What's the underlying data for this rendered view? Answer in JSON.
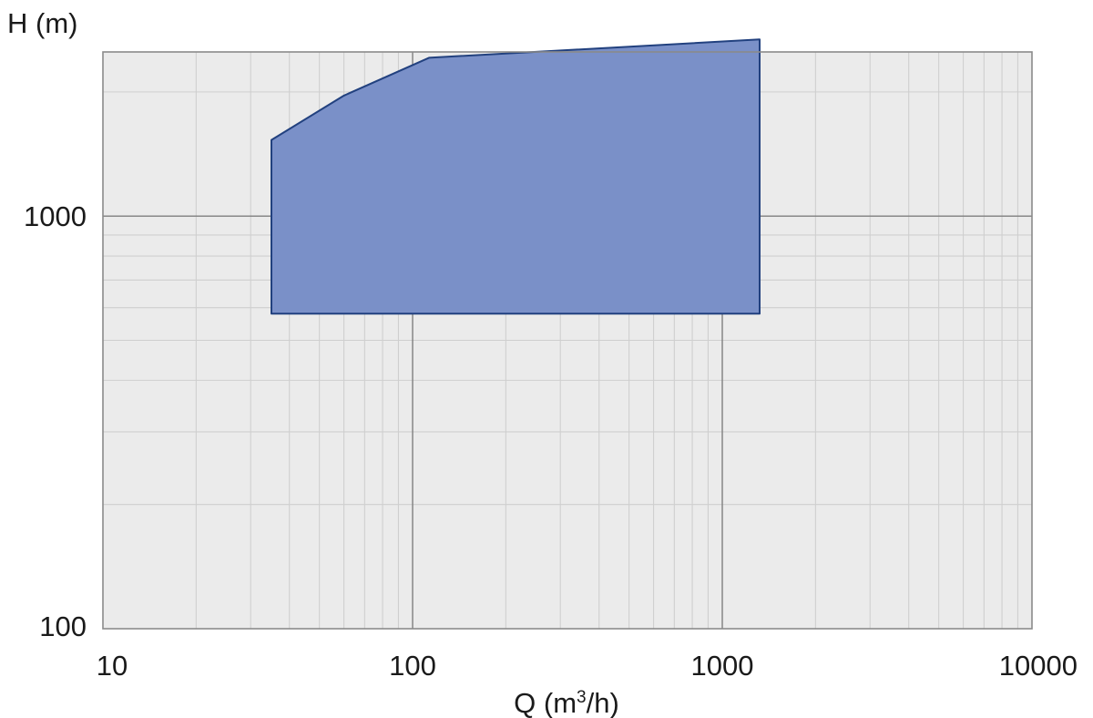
{
  "chart_data": {
    "type": "area",
    "xscale": "log",
    "yscale": "log",
    "xlim": [
      10,
      10000
    ],
    "ylim": [
      100,
      2500
    ],
    "xticks": [
      10,
      100,
      1000,
      10000
    ],
    "xtick_labels": [
      "10",
      "100",
      "1000",
      "10000"
    ],
    "yticks": [
      100,
      1000
    ],
    "ytick_labels": [
      "100",
      "1000"
    ],
    "xlabel_main": "Q (m",
    "xlabel_sup": "3",
    "xlabel_tail": "/h)",
    "ylabel": "H (m)",
    "grid": true,
    "legend": "none",
    "series": [
      {
        "points": [
          [
            35,
            580
          ],
          [
            35,
            1530
          ],
          [
            60,
            1960
          ],
          [
            113,
            2420
          ],
          [
            1320,
            2680
          ],
          [
            1320,
            580
          ]
        ]
      }
    ],
    "colors": {
      "fill": "#7a90c8",
      "stroke": "#22417f",
      "plot_bg": "#ebebeb",
      "minor_grid": "#cfcfcf",
      "major_grid": "#7f7f7f",
      "frame": "#8a8a8a"
    }
  }
}
